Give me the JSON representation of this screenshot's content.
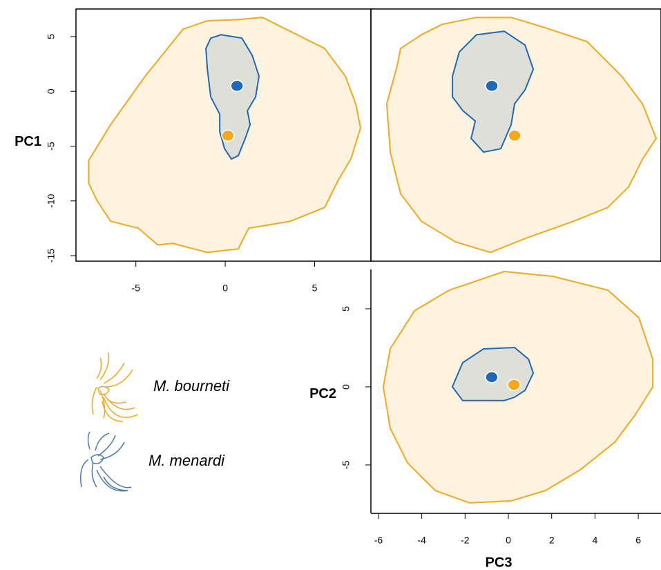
{
  "chart_data": [
    {
      "type": "scatter",
      "ylabel": "PC1",
      "xlim": [
        -8.35,
        8.15
      ],
      "ylim": [
        -15.5,
        7.52
      ],
      "xticks": [
        -5,
        0,
        5
      ],
      "yticks": [
        5,
        0,
        -5,
        -10,
        -15
      ],
      "series": [
        {
          "name": "M. bourneti",
          "color": "#f4a81d",
          "x": [
            -7.64,
            -6.41,
            -4.48,
            -2.36,
            -1.0,
            0.73,
            2.08,
            3.63,
            5.56,
            6.72,
            7.3,
            7.57,
            7.03,
            6.33,
            5.56,
            3.63,
            1.31,
            0.73,
            -1.0,
            -2.93,
            -3.78,
            -4.86,
            -6.41,
            -7.18,
            -7.64
          ],
          "y": [
            -6.31,
            -3.03,
            1.39,
            5.68,
            6.44,
            6.56,
            6.75,
            5.49,
            3.91,
            1.39,
            -1.14,
            -3.34,
            -6.18,
            -8.08,
            -10.6,
            -11.86,
            -12.49,
            -14.38,
            -14.7,
            -13.88,
            -14.01,
            -12.49,
            -11.86,
            -9.97,
            -8.39
          ],
          "centroid": {
            "x": 0.15,
            "y": -4.04
          }
        },
        {
          "name": "M. menardi",
          "color": "#1f68b3",
          "x": [
            -1.0,
            -1.08,
            -0.81,
            -0.23,
            0.93,
            1.51,
            1.89,
            1.7,
            1.24,
            1.39,
            1.12,
            0.73,
            0.35,
            -0.04,
            -0.31,
            -0.31,
            -0.81
          ],
          "y": [
            2.02,
            3.91,
            4.86,
            5.17,
            4.86,
            3.28,
            1.39,
            -0.5,
            -1.77,
            -3.03,
            -4.29,
            -5.87,
            -6.18,
            -5.24,
            -3.66,
            -2.08,
            -0.5
          ],
          "centroid": {
            "x": 0.66,
            "y": 0.5
          }
        }
      ]
    },
    {
      "type": "scatter",
      "xlim": [
        -8.1,
        8.05
      ],
      "ylim": [
        -15.5,
        7.52
      ],
      "series": [
        {
          "color": "#f4a81d",
          "x": [
            -7.22,
            -6.64,
            -6.45,
            -5.29,
            -4.14,
            -2.22,
            -0.29,
            1.63,
            3.94,
            5.86,
            7.02,
            7.78,
            7.02,
            6.25,
            5.09,
            3.17,
            0.48,
            -1.45,
            -3.37,
            -5.29,
            -6.45,
            -7.02
          ],
          "y": [
            -1.14,
            2.33,
            3.91,
            5.17,
            6.12,
            6.75,
            6.75,
            5.8,
            4.54,
            1.39,
            -1.14,
            -4.29,
            -6.18,
            -8.71,
            -10.6,
            -11.86,
            -13.44,
            -14.7,
            -13.75,
            -11.86,
            -9.34,
            -5.55
          ],
          "centroid": {
            "x": -0.1,
            "y": -4.04
          }
        },
        {
          "color": "#1f68b3",
          "x": [
            -3.56,
            -3.18,
            -2.22,
            -0.68,
            0.48,
            0.94,
            0.48,
            -0.1,
            -0.29,
            -0.87,
            -1.83,
            -2.52,
            -2.29,
            -2.98,
            -3.56
          ],
          "y": [
            1.39,
            3.6,
            5.17,
            5.49,
            4.23,
            2.02,
            0.13,
            -1.14,
            -3.03,
            -5.24,
            -5.55,
            -4.29,
            -2.71,
            -1.77,
            -0.5
          ],
          "centroid": {
            "x": -1.37,
            "y": 0.5
          }
        }
      ]
    },
    {
      "type": "scatter",
      "xlabel": "PC3",
      "ylabel": "PC2",
      "xlim": [
        -6.35,
        7.05
      ],
      "ylim": [
        -8.1,
        8.05
      ],
      "xticks": [
        -6,
        -4,
        -2,
        0,
        2,
        4,
        6
      ],
      "yticks": [
        5,
        0,
        -5
      ],
      "series": [
        {
          "color": "#f4a81d",
          "x": [
            -5.78,
            -5.46,
            -4.34,
            -2.74,
            -0.19,
            2.04,
            4.6,
            6.03,
            6.67,
            6.67,
            5.87,
            4.92,
            3.32,
            1.72,
            0.13,
            -1.79,
            -3.38,
            -4.66,
            -5.46
          ],
          "y": [
            0,
            2.43,
            4.87,
            6.19,
            7.39,
            7.08,
            6.19,
            4.42,
            1.77,
            0,
            -1.77,
            -3.54,
            -5.31,
            -6.64,
            -7.3,
            -7.43,
            -6.64,
            -4.87,
            -2.65
          ],
          "centroid": {
            "x": 0.26,
            "y": 0.13
          }
        },
        {
          "color": "#1f68b3",
          "x": [
            -2.59,
            -2.11,
            -1.15,
            0.29,
            0.93,
            1.15,
            0.77,
            0.29,
            -0.19,
            -1.15,
            -2.11
          ],
          "y": [
            0,
            1.55,
            2.43,
            2.52,
            1.77,
            0.88,
            -0.22,
            -0.66,
            -0.88,
            -0.88,
            -0.88
          ],
          "centroid": {
            "x": -0.77,
            "y": 0.62
          }
        }
      ]
    }
  ]
}
